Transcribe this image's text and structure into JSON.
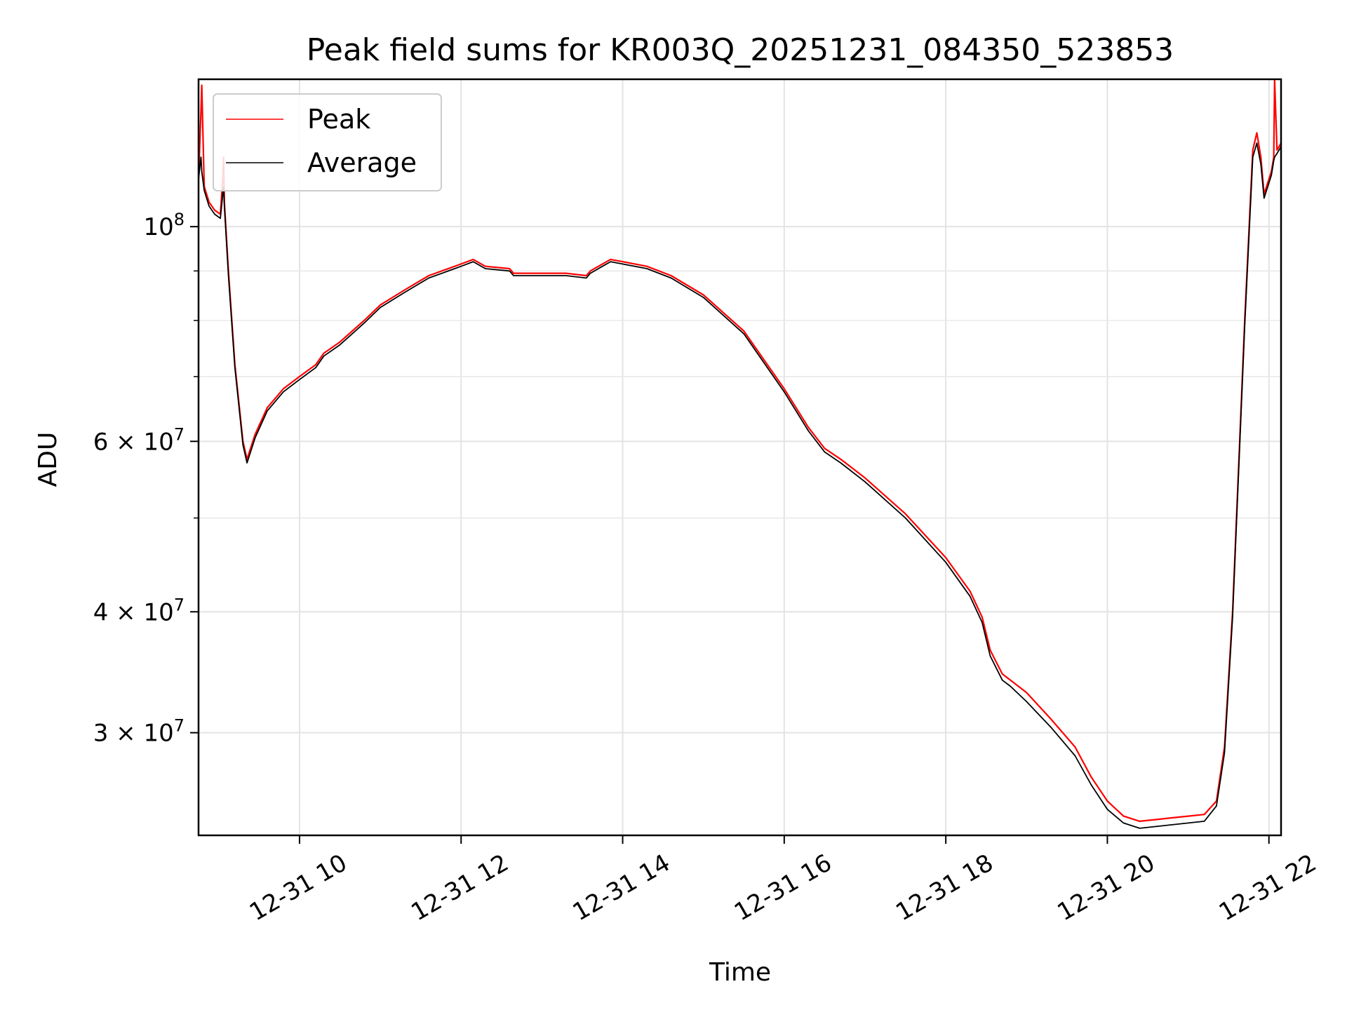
{
  "chart_data": {
    "type": "line",
    "title": "Peak field sums for KR003Q_20251231_084350_523853",
    "xlabel": "Time",
    "ylabel": "ADU",
    "yscale": "log",
    "grid": true,
    "legend_position": "top-left",
    "xlim": [
      8.75,
      22.15
    ],
    "ylim": [
      23500000,
      142000000
    ],
    "x_ticks": [
      {
        "value": 10,
        "label": "12-31 10"
      },
      {
        "value": 12,
        "label": "12-31 12"
      },
      {
        "value": 14,
        "label": "12-31 14"
      },
      {
        "value": 16,
        "label": "12-31 16"
      },
      {
        "value": 18,
        "label": "12-31 18"
      },
      {
        "value": 20,
        "label": "12-31 20"
      },
      {
        "value": 22,
        "label": "12-31 22"
      }
    ],
    "y_major_ticks": [
      {
        "value": 100000000,
        "base": "10",
        "exp": "8"
      },
      {
        "value": 60000000,
        "base": "6 × 10",
        "exp": "7"
      },
      {
        "value": 40000000,
        "base": "4 × 10",
        "exp": "7"
      },
      {
        "value": 30000000,
        "base": "3 × 10",
        "exp": "7"
      }
    ],
    "y_minor_ticks": [
      90000000,
      80000000,
      70000000,
      50000000
    ],
    "series": [
      {
        "name": "Peak",
        "color": "#ff0000",
        "x": [
          8.75,
          8.78,
          8.79,
          8.82,
          8.88,
          8.95,
          9.02,
          9.05,
          9.06,
          9.07,
          9.12,
          9.2,
          9.3,
          9.35,
          9.45,
          9.6,
          9.8,
          10.0,
          10.2,
          10.3,
          10.5,
          10.8,
          11.0,
          11.3,
          11.6,
          12.0,
          12.15,
          12.3,
          12.6,
          12.65,
          13.0,
          13.3,
          13.55,
          13.6,
          13.75,
          13.85,
          14.0,
          14.3,
          14.6,
          15.0,
          15.5,
          16.0,
          16.3,
          16.5,
          16.7,
          17.0,
          17.5,
          18.0,
          18.3,
          18.45,
          18.55,
          18.7,
          18.8,
          19.0,
          19.3,
          19.6,
          19.8,
          20.0,
          20.2,
          20.4,
          20.6,
          20.8,
          21.0,
          21.2,
          21.35,
          21.45,
          21.55,
          21.7,
          21.8,
          21.85,
          21.9,
          21.94,
          21.97,
          22.03,
          22.06,
          22.07,
          22.1,
          22.15
        ],
        "y": [
          112000000,
          132000000,
          140000000,
          110000000,
          106000000,
          104000000,
          103000000,
          112000000,
          118000000,
          106000000,
          90000000,
          72000000,
          60000000,
          57500000,
          61000000,
          65000000,
          68000000,
          70000000,
          72000000,
          74000000,
          76000000,
          80000000,
          83000000,
          86000000,
          89000000,
          91500000,
          92500000,
          91000000,
          90500000,
          89500000,
          89500000,
          89500000,
          89000000,
          90000000,
          91500000,
          92500000,
          92000000,
          91000000,
          89000000,
          85000000,
          78000000,
          68000000,
          62000000,
          59000000,
          57500000,
          55000000,
          50500000,
          45500000,
          42000000,
          39500000,
          36500000,
          34500000,
          34000000,
          33000000,
          31000000,
          29000000,
          27000000,
          25500000,
          24600000,
          24300000,
          24400000,
          24500000,
          24600000,
          24700000,
          25500000,
          29000000,
          40000000,
          80000000,
          120000000,
          125000000,
          118000000,
          108000000,
          110000000,
          114000000,
          118000000,
          142000000,
          120000000,
          122000000
        ]
      },
      {
        "name": "Average",
        "color": "#000000",
        "x": [
          8.75,
          8.78,
          8.79,
          8.82,
          8.88,
          8.95,
          9.02,
          9.05,
          9.06,
          9.07,
          9.12,
          9.2,
          9.3,
          9.35,
          9.45,
          9.6,
          9.8,
          10.0,
          10.2,
          10.3,
          10.5,
          10.8,
          11.0,
          11.3,
          11.6,
          12.0,
          12.15,
          12.3,
          12.6,
          12.65,
          13.0,
          13.3,
          13.55,
          13.6,
          13.75,
          13.85,
          14.0,
          14.3,
          14.6,
          15.0,
          15.5,
          16.0,
          16.3,
          16.5,
          16.7,
          17.0,
          17.5,
          18.0,
          18.3,
          18.45,
          18.55,
          18.7,
          18.8,
          19.0,
          19.3,
          19.6,
          19.8,
          20.0,
          20.2,
          20.4,
          20.6,
          20.8,
          21.0,
          21.2,
          21.35,
          21.45,
          21.55,
          21.7,
          21.8,
          21.85,
          21.9,
          21.94,
          21.97,
          22.03,
          22.06,
          22.07,
          22.1,
          22.15
        ],
        "y": [
          112000000,
          118000000,
          114000000,
          109000000,
          105000000,
          103000000,
          102000000,
          108000000,
          110000000,
          105000000,
          89000000,
          71500000,
          59500000,
          57000000,
          60500000,
          64500000,
          67500000,
          69500000,
          71500000,
          73500000,
          75500000,
          79500000,
          82500000,
          85500000,
          88500000,
          91000000,
          92000000,
          90500000,
          90000000,
          89000000,
          89000000,
          89000000,
          88500000,
          89500000,
          91000000,
          92000000,
          91500000,
          90500000,
          88500000,
          84500000,
          77500000,
          67500000,
          61500000,
          58500000,
          57000000,
          54500000,
          50000000,
          45000000,
          41500000,
          39000000,
          36000000,
          34000000,
          33500000,
          32300000,
          30400000,
          28400000,
          26500000,
          25000000,
          24200000,
          23900000,
          24000000,
          24100000,
          24200000,
          24300000,
          25200000,
          28600000,
          39500000,
          79000000,
          118000000,
          122000000,
          116000000,
          107000000,
          109000000,
          113000000,
          117000000,
          118000000,
          119000000,
          121000000
        ]
      }
    ]
  }
}
